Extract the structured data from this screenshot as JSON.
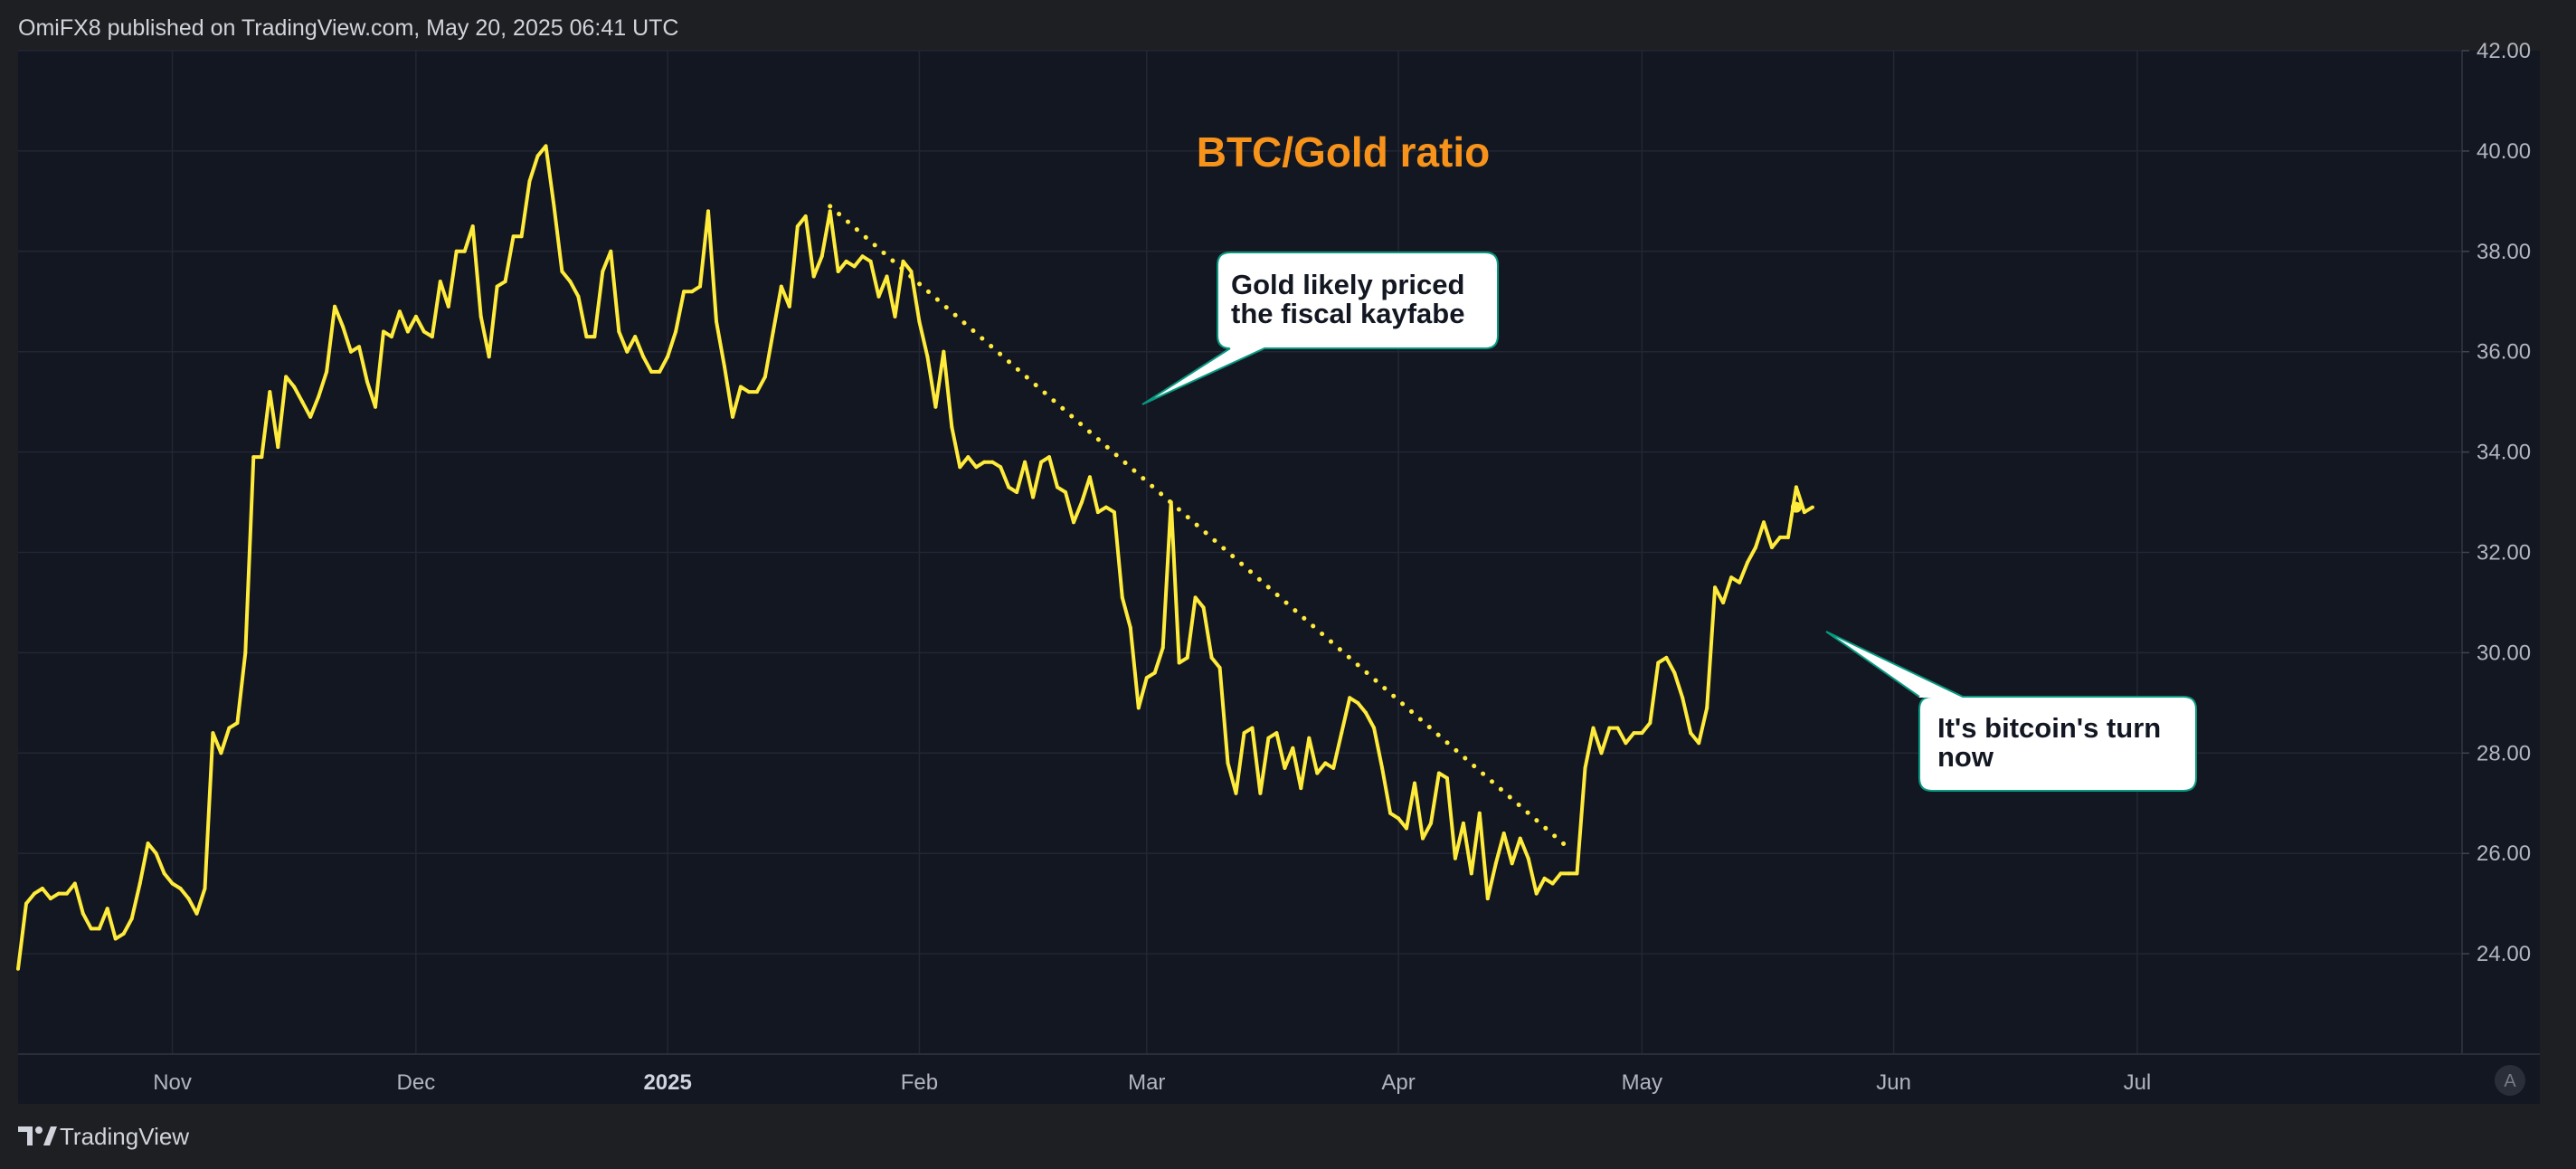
{
  "header": {
    "published": "OmiFX8 published on TradingView.com, May 20, 2025 06:41 UTC"
  },
  "footer": {
    "brand": "TradingView",
    "auto_scale_label": "A"
  },
  "colors": {
    "line": "#ffeb3b",
    "title": "#f7931a",
    "background": "#131722",
    "callout_border": "#089981"
  },
  "chart_data": {
    "type": "line",
    "title": "BTC/Gold ratio",
    "ylim": [
      22.0,
      42.0
    ],
    "y_ticks": [
      "24.00",
      "26.00",
      "28.00",
      "30.00",
      "32.00",
      "34.00",
      "36.00",
      "38.00",
      "40.00",
      "42.00"
    ],
    "x_ticks": [
      {
        "label": "Nov",
        "date": "2024-11-01"
      },
      {
        "label": "Dec",
        "date": "2024-12-01"
      },
      {
        "label": "2025",
        "date": "2025-01-01",
        "bold": true
      },
      {
        "label": "Feb",
        "date": "2025-02-01"
      },
      {
        "label": "Mar",
        "date": "2025-03-01"
      },
      {
        "label": "Apr",
        "date": "2025-04-01"
      },
      {
        "label": "May",
        "date": "2025-05-01"
      },
      {
        "label": "Jun",
        "date": "2025-06-01"
      },
      {
        "label": "Jul",
        "date": "2025-07-01"
      }
    ],
    "xlim": [
      "2024-10-13",
      "2025-08-10"
    ],
    "start_date": "2024-10-13",
    "series": [
      {
        "name": "BTC/Gold ratio",
        "values": [
          23.7,
          25.0,
          25.2,
          25.3,
          25.1,
          25.2,
          25.2,
          25.4,
          24.8,
          24.5,
          24.5,
          24.9,
          24.3,
          24.4,
          24.7,
          25.4,
          26.2,
          26.0,
          25.6,
          25.4,
          25.3,
          25.1,
          24.8,
          25.3,
          28.4,
          28.0,
          28.5,
          28.6,
          30.0,
          33.9,
          33.9,
          35.2,
          34.1,
          35.5,
          35.3,
          35.0,
          34.7,
          35.1,
          35.6,
          36.9,
          36.5,
          36.0,
          36.1,
          35.4,
          34.9,
          36.4,
          36.3,
          36.8,
          36.4,
          36.7,
          36.4,
          36.3,
          37.4,
          36.9,
          38.0,
          38.0,
          38.5,
          36.7,
          35.9,
          37.3,
          37.4,
          38.3,
          38.3,
          39.4,
          39.9,
          40.1,
          38.9,
          37.6,
          37.4,
          37.1,
          36.3,
          36.3,
          37.6,
          38.0,
          36.4,
          36.0,
          36.3,
          35.9,
          35.6,
          35.6,
          35.9,
          36.4,
          37.2,
          37.2,
          37.3,
          38.8,
          36.6,
          35.7,
          34.7,
          35.3,
          35.2,
          35.2,
          35.5,
          36.4,
          37.3,
          36.9,
          38.5,
          38.7,
          37.5,
          37.9,
          38.8,
          37.6,
          37.8,
          37.7,
          37.9,
          37.8,
          37.1,
          37.5,
          36.7,
          37.8,
          37.6,
          36.6,
          35.9,
          34.9,
          36.0,
          34.5,
          33.7,
          33.9,
          33.7,
          33.8,
          33.8,
          33.7,
          33.3,
          33.2,
          33.8,
          33.1,
          33.8,
          33.9,
          33.3,
          33.2,
          32.6,
          33.0,
          33.5,
          32.8,
          32.9,
          32.8,
          31.1,
          30.5,
          28.9,
          29.5,
          29.6,
          30.1,
          33.0,
          29.8,
          29.9,
          31.1,
          30.9,
          29.9,
          29.7,
          27.8,
          27.2,
          28.4,
          28.5,
          27.2,
          28.3,
          28.4,
          27.7,
          28.1,
          27.3,
          28.3,
          27.6,
          27.8,
          27.7,
          28.4,
          29.1,
          29.0,
          28.8,
          28.5,
          27.7,
          26.8,
          26.7,
          26.5,
          27.4,
          26.3,
          26.6,
          27.6,
          27.5,
          25.9,
          26.6,
          25.6,
          26.8,
          25.1,
          25.8,
          26.4,
          25.8,
          26.3,
          25.9,
          25.2,
          25.5,
          25.4,
          25.6,
          25.6,
          25.6,
          27.7,
          28.5,
          28.0,
          28.5,
          28.5,
          28.2,
          28.4,
          28.4,
          28.6,
          29.8,
          29.9,
          29.6,
          29.1,
          28.4,
          28.2,
          28.9,
          31.3,
          31.0,
          31.5,
          31.4,
          31.8,
          32.1,
          32.6,
          32.1,
          32.3,
          32.3,
          33.3,
          32.8,
          32.9
        ]
      }
    ],
    "annotations": [
      {
        "text_line1": "Gold likely priced",
        "text_line2": "the fiscal kayfabe"
      },
      {
        "text_line1": "It's bitcoin's turn",
        "text_line2": "now"
      }
    ],
    "trendline": {
      "start": {
        "date": "2025-01-21",
        "value": 38.9
      },
      "end": {
        "date": "2025-04-22",
        "value": 26.1
      },
      "style": "dotted"
    },
    "last_point_marker": {
      "date": "2025-05-20",
      "value": 32.9
    }
  }
}
